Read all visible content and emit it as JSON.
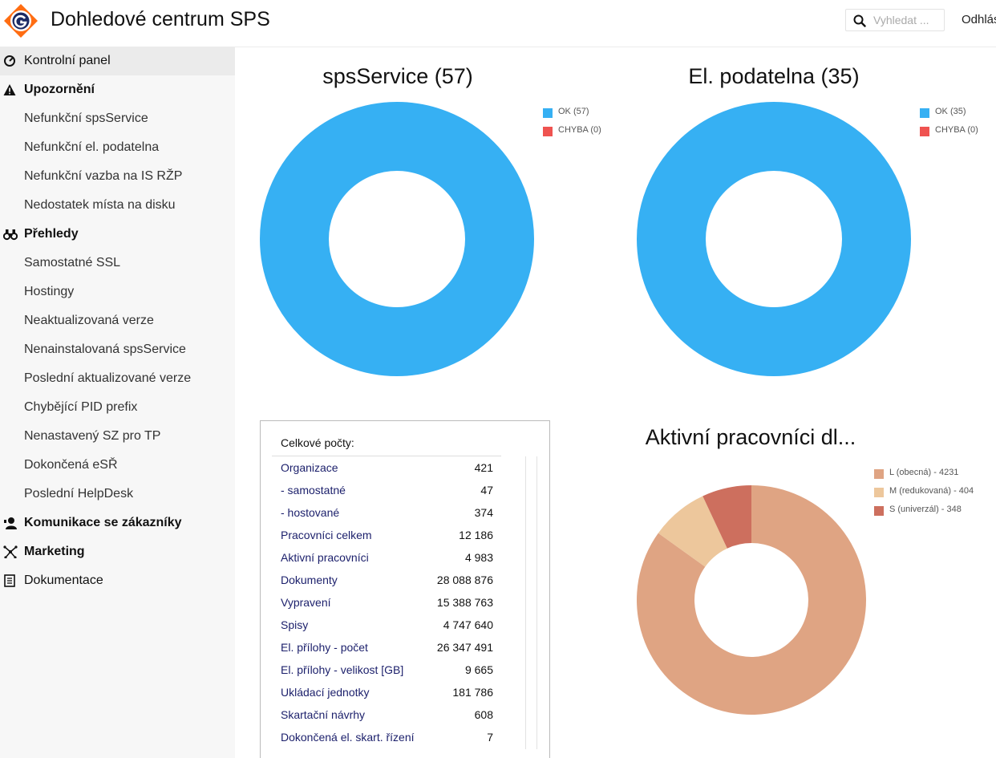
{
  "header": {
    "title": "Dohledové centrum SPS",
    "search_placeholder": "Vyhledat ...",
    "logout_label": "Odhlás"
  },
  "sidebar": {
    "items": [
      {
        "label": "Kontrolní panel",
        "kind": "section-plain",
        "icon": "dashboard-icon",
        "active": true
      },
      {
        "label": "Upozornění",
        "kind": "section",
        "icon": "warning-icon"
      },
      {
        "label": "Nefunkční spsService",
        "kind": "sub"
      },
      {
        "label": "Nefunkční el. podatelna",
        "kind": "sub"
      },
      {
        "label": "Nefunkční vazba na IS RŽP",
        "kind": "sub"
      },
      {
        "label": "Nedostatek místa na disku",
        "kind": "sub"
      },
      {
        "label": "Přehledy",
        "kind": "section",
        "icon": "binoculars-icon"
      },
      {
        "label": "Samostatné SSL",
        "kind": "sub"
      },
      {
        "label": "Hostingy",
        "kind": "sub"
      },
      {
        "label": "Neaktualizovaná verze",
        "kind": "sub"
      },
      {
        "label": "Nenainstalovaná spsService",
        "kind": "sub"
      },
      {
        "label": "Poslední aktualizované verze",
        "kind": "sub"
      },
      {
        "label": "Chybějící PID prefix",
        "kind": "sub"
      },
      {
        "label": "Nenastavený SZ pro TP",
        "kind": "sub"
      },
      {
        "label": "Dokončená eSŘ",
        "kind": "sub"
      },
      {
        "label": "Poslední HelpDesk",
        "kind": "sub"
      },
      {
        "label": "Komunikace se zákazníky",
        "kind": "section",
        "icon": "customer-contact-icon"
      },
      {
        "label": "Marketing",
        "kind": "section",
        "icon": "network-icon"
      },
      {
        "label": "Dokumentace",
        "kind": "section-plain",
        "icon": "document-icon"
      }
    ]
  },
  "stats": {
    "heading": "Celkové počty:",
    "rows": [
      {
        "label": "Organizace",
        "value": "421"
      },
      {
        "label": " - samostatné",
        "value": "47"
      },
      {
        "label": " - hostované",
        "value": "374"
      },
      {
        "label": "Pracovníci celkem",
        "value": "12 186"
      },
      {
        "label": "Aktivní pracovníci",
        "value": "4 983"
      },
      {
        "label": "Dokumenty",
        "value": "28 088 876"
      },
      {
        "label": "Vypravení",
        "value": "15 388 763"
      },
      {
        "label": "Spisy",
        "value": "4 747 640"
      },
      {
        "label": "El. přílohy - počet",
        "value": "26 347 491"
      },
      {
        "label": "El. přílohy - velikost [GB]",
        "value": "9 665"
      },
      {
        "label": "Ukládací jednotky",
        "value": "181 786"
      },
      {
        "label": "Skartační návrhy",
        "value": "608"
      },
      {
        "label": "Dokončená el. skart. řízení",
        "value": "7"
      }
    ]
  },
  "chart_data": [
    {
      "type": "pie",
      "variant": "donut",
      "title": "spsService (57)",
      "categories": [
        "OK (57)",
        "CHYBA (0)"
      ],
      "values": [
        57,
        0
      ],
      "colors": [
        "#36b0f3",
        "#ef5350"
      ],
      "legend": "top-right"
    },
    {
      "type": "pie",
      "variant": "donut",
      "title": "El. podatelna (35)",
      "categories": [
        "OK (35)",
        "CHYBA (0)"
      ],
      "values": [
        35,
        0
      ],
      "colors": [
        "#36b0f3",
        "#ef5350"
      ],
      "legend": "top-right"
    },
    {
      "type": "pie",
      "variant": "donut",
      "title": "Aktivní pracovníci dl...",
      "categories": [
        "L (obecná) - 4231",
        "M (redukovaná) - 404",
        "S (univerzál) - 348"
      ],
      "values": [
        4231,
        404,
        348
      ],
      "colors": [
        "#dfa483",
        "#edc79c",
        "#cd6f5e"
      ],
      "legend": "top-right"
    }
  ]
}
